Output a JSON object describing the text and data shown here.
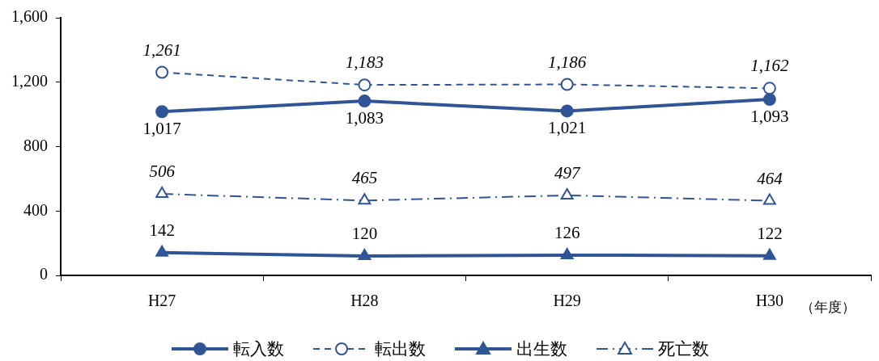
{
  "chart_data": {
    "type": "line",
    "xlabel": "（年度）",
    "categories": [
      "H27",
      "H28",
      "H29",
      "H30"
    ],
    "ylim": [
      0,
      1600
    ],
    "yticks": [
      {
        "value": 0,
        "label": "0"
      },
      {
        "value": 400,
        "label": "400"
      },
      {
        "value": 800,
        "label": "800"
      },
      {
        "value": 1200,
        "label": "1,200"
      },
      {
        "value": 1600,
        "label": "1,600"
      }
    ],
    "grid": false,
    "legend": "bottom",
    "series": [
      {
        "name": "転入数",
        "color": "#2f5597",
        "values": [
          1017,
          1083,
          1021,
          1093
        ],
        "value_labels": [
          "1,017",
          "1,083",
          "1,021",
          "1,093"
        ],
        "marker": "circle",
        "line_style": "solid"
      },
      {
        "name": "転出数",
        "color": "#2f5597",
        "values": [
          1261,
          1183,
          1186,
          1162
        ],
        "value_labels": [
          "1,261",
          "1,183",
          "1,186",
          "1,162"
        ],
        "marker": "circle",
        "line_style": "dashed"
      },
      {
        "name": "出生数",
        "color": "#2f5597",
        "values": [
          142,
          120,
          126,
          122
        ],
        "value_labels": [
          "142",
          "120",
          "126",
          "122"
        ],
        "marker": "triangle",
        "line_style": "solid"
      },
      {
        "name": "死亡数",
        "color": "#2f5597",
        "values": [
          506,
          465,
          497,
          464
        ],
        "value_labels": [
          "506",
          "465",
          "497",
          "464"
        ],
        "marker": "triangle",
        "line_style": "dashdot"
      }
    ]
  }
}
